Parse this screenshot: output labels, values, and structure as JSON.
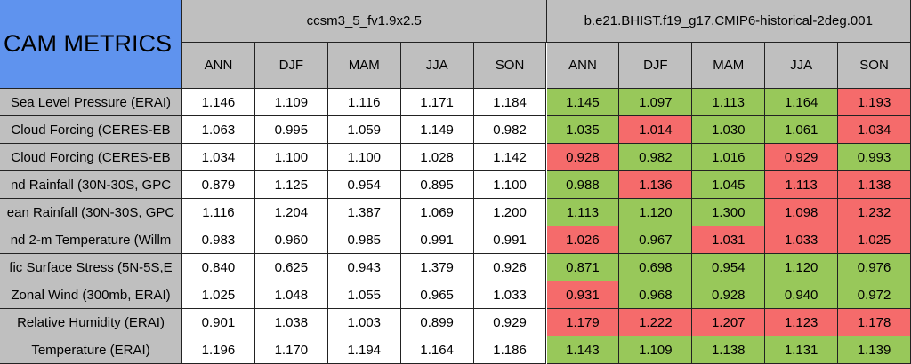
{
  "table": {
    "corner": "CAM METRICS",
    "models": [
      "ccsm3_5_fv1.9x2.5",
      "b.e21.BHIST.f19_g17.CMIP6-historical-2deg.001"
    ],
    "seasons": [
      "ANN",
      "DJF",
      "MAM",
      "JJA",
      "SON"
    ],
    "rows": [
      {
        "label": "Sea Level Pressure (ERAI)",
        "base": [
          "1.146",
          "1.109",
          "1.116",
          "1.171",
          "1.184"
        ],
        "test": [
          "1.145",
          "1.097",
          "1.113",
          "1.164",
          "1.193"
        ],
        "colors": [
          "#98c85a",
          "#98c85a",
          "#98c85a",
          "#98c85a",
          "#f56b6b"
        ]
      },
      {
        "label": "Cloud Forcing (CERES-EB",
        "base": [
          "1.063",
          "0.995",
          "1.059",
          "1.149",
          "0.982"
        ],
        "test": [
          "1.035",
          "1.014",
          "1.030",
          "1.061",
          "1.034"
        ],
        "colors": [
          "#98c85a",
          "#f56b6b",
          "#98c85a",
          "#98c85a",
          "#f56b6b"
        ]
      },
      {
        "label": "Cloud Forcing (CERES-EB",
        "base": [
          "1.034",
          "1.100",
          "1.100",
          "1.028",
          "1.142"
        ],
        "test": [
          "0.928",
          "0.982",
          "1.016",
          "0.929",
          "0.993"
        ],
        "colors": [
          "#f56b6b",
          "#98c85a",
          "#98c85a",
          "#f56b6b",
          "#98c85a"
        ]
      },
      {
        "label": "nd Rainfall (30N-30S, GPC",
        "base": [
          "0.879",
          "1.125",
          "0.954",
          "0.895",
          "1.100"
        ],
        "test": [
          "0.988",
          "1.136",
          "1.045",
          "1.113",
          "1.138"
        ],
        "colors": [
          "#98c85a",
          "#f56b6b",
          "#98c85a",
          "#f56b6b",
          "#f56b6b"
        ]
      },
      {
        "label": "ean Rainfall (30N-30S, GPC",
        "base": [
          "1.116",
          "1.204",
          "1.387",
          "1.069",
          "1.200"
        ],
        "test": [
          "1.113",
          "1.120",
          "1.300",
          "1.098",
          "1.232"
        ],
        "colors": [
          "#98c85a",
          "#98c85a",
          "#98c85a",
          "#f56b6b",
          "#f56b6b"
        ]
      },
      {
        "label": "nd 2-m Temperature (Willm",
        "base": [
          "0.983",
          "0.960",
          "0.985",
          "0.991",
          "0.991"
        ],
        "test": [
          "1.026",
          "0.967",
          "1.031",
          "1.033",
          "1.025"
        ],
        "colors": [
          "#f56b6b",
          "#98c85a",
          "#f56b6b",
          "#f56b6b",
          "#f56b6b"
        ]
      },
      {
        "label": "fic Surface Stress (5N-5S,E",
        "base": [
          "0.840",
          "0.625",
          "0.943",
          "1.379",
          "0.926"
        ],
        "test": [
          "0.871",
          "0.698",
          "0.954",
          "1.120",
          "0.976"
        ],
        "colors": [
          "#98c85a",
          "#98c85a",
          "#98c85a",
          "#98c85a",
          "#98c85a"
        ]
      },
      {
        "label": "Zonal Wind (300mb, ERAI)",
        "base": [
          "1.025",
          "1.048",
          "1.055",
          "0.965",
          "1.033"
        ],
        "test": [
          "0.931",
          "0.968",
          "0.928",
          "0.940",
          "0.972"
        ],
        "colors": [
          "#f56b6b",
          "#98c85a",
          "#98c85a",
          "#98c85a",
          "#98c85a"
        ]
      },
      {
        "label": "Relative Humidity (ERAI)",
        "base": [
          "0.901",
          "1.038",
          "1.003",
          "0.899",
          "0.929"
        ],
        "test": [
          "1.179",
          "1.222",
          "1.207",
          "1.123",
          "1.178"
        ],
        "colors": [
          "#f56b6b",
          "#f56b6b",
          "#f56b6b",
          "#f56b6b",
          "#f56b6b"
        ]
      },
      {
        "label": "Temperature (ERAI)",
        "base": [
          "1.196",
          "1.170",
          "1.194",
          "1.164",
          "1.186"
        ],
        "test": [
          "1.143",
          "1.109",
          "1.138",
          "1.131",
          "1.139"
        ],
        "colors": [
          "#98c85a",
          "#98c85a",
          "#98c85a",
          "#98c85a",
          "#98c85a"
        ]
      }
    ]
  }
}
